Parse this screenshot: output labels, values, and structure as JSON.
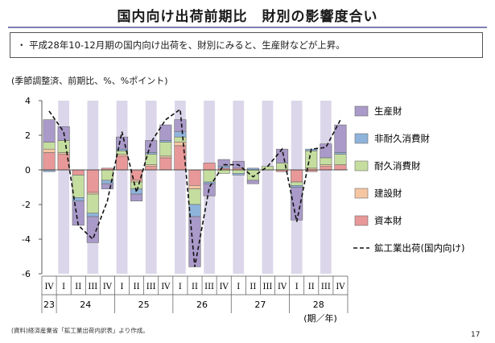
{
  "page": {
    "title": "国内向け出荷前期比　財別の影響度合い",
    "summary": "・ 平成28年10-12月期の国内向け出荷を、財別にみると、生産財などが上昇。",
    "units_note": "(季節調整済、前期比、%、%ポイント)",
    "source": "(資料)経済産業省「鉱工業出荷内訳表」より作成。",
    "page_number": "17",
    "axis_unit_label": "(期／年)"
  },
  "colors": {
    "生産財": "#a99ac9",
    "非耐久消費財": "#8fb4dc",
    "耐久消費財": "#c5dea0",
    "建設財": "#f6c6a2",
    "資本財": "#e89898",
    "band": "#dcd6ea",
    "line": "#111111"
  },
  "chart_data": {
    "type": "bar",
    "stacked": true,
    "categories": [
      "IV",
      "I",
      "II",
      "III",
      "IV",
      "I",
      "II",
      "III",
      "IV",
      "I",
      "II",
      "III",
      "IV",
      "I",
      "II",
      "III",
      "IV",
      "I",
      "II",
      "III",
      "IV"
    ],
    "year_labels": [
      {
        "label": "23",
        "start": 0,
        "end": 0
      },
      {
        "label": "24",
        "start": 1,
        "end": 4
      },
      {
        "label": "25",
        "start": 5,
        "end": 8
      },
      {
        "label": "26",
        "start": 9,
        "end": 12
      },
      {
        "label": "27",
        "start": 13,
        "end": 16
      },
      {
        "label": "28",
        "start": 17,
        "end": 20
      }
    ],
    "ylim": [
      -6,
      4
    ],
    "yticks": [
      -6,
      -4,
      -2,
      0,
      2,
      4
    ],
    "series": [
      {
        "name": "資本財",
        "values": [
          1.0,
          0.9,
          -0.3,
          -1.3,
          0.1,
          0.8,
          -0.6,
          0.2,
          0.7,
          1.4,
          -0.9,
          0.4,
          0.1,
          0.1,
          0.0,
          0.0,
          -0.1,
          -0.7,
          -0.1,
          0.2,
          0.3
        ]
      },
      {
        "name": "建設財",
        "values": [
          0.2,
          0.1,
          0.0,
          -0.1,
          0.0,
          0.1,
          -0.1,
          0.1,
          0.1,
          0.2,
          -0.2,
          0.0,
          0.0,
          0.0,
          0.0,
          0.0,
          0.0,
          0.0,
          0.1,
          0.1,
          0.0
        ]
      },
      {
        "name": "耐久消費財",
        "values": [
          0.4,
          0.7,
          -1.3,
          -1.1,
          -0.6,
          0.2,
          -0.4,
          0.6,
          0.8,
          0.3,
          -0.9,
          -0.7,
          -0.2,
          -0.2,
          -0.6,
          0.2,
          0.4,
          -0.2,
          1.0,
          0.4,
          0.6
        ]
      },
      {
        "name": "非耐久消費財",
        "values": [
          -0.1,
          0.0,
          -0.2,
          -0.2,
          -0.2,
          0.1,
          -0.3,
          0.1,
          0.1,
          0.3,
          -0.7,
          -0.1,
          0.1,
          -0.1,
          0.1,
          0.0,
          0.0,
          -0.1,
          0.1,
          0.0,
          0.1
        ]
      },
      {
        "name": "生産財",
        "values": [
          1.3,
          0.8,
          -1.4,
          -1.5,
          -0.3,
          0.7,
          -0.4,
          0.7,
          0.9,
          0.7,
          -2.9,
          -0.7,
          0.4,
          0.4,
          -0.2,
          0.0,
          0.8,
          -1.9,
          0.0,
          0.8,
          1.6
        ]
      }
    ],
    "line": {
      "name": "鉱工業出荷(国内向け)",
      "values": [
        3.4,
        2.2,
        -3.2,
        -4.0,
        -1.8,
        2.2,
        -1.3,
        1.6,
        2.9,
        3.5,
        -5.6,
        -1.0,
        0.3,
        0.3,
        -0.4,
        0.2,
        1.2,
        -3.0,
        1.2,
        1.3,
        2.9
      ]
    },
    "legend": [
      "生産財",
      "非耐久消費財",
      "耐久消費財",
      "建設財",
      "資本財",
      "鉱工業出荷(国内向け)"
    ],
    "legend_position": "right",
    "grid": false
  }
}
